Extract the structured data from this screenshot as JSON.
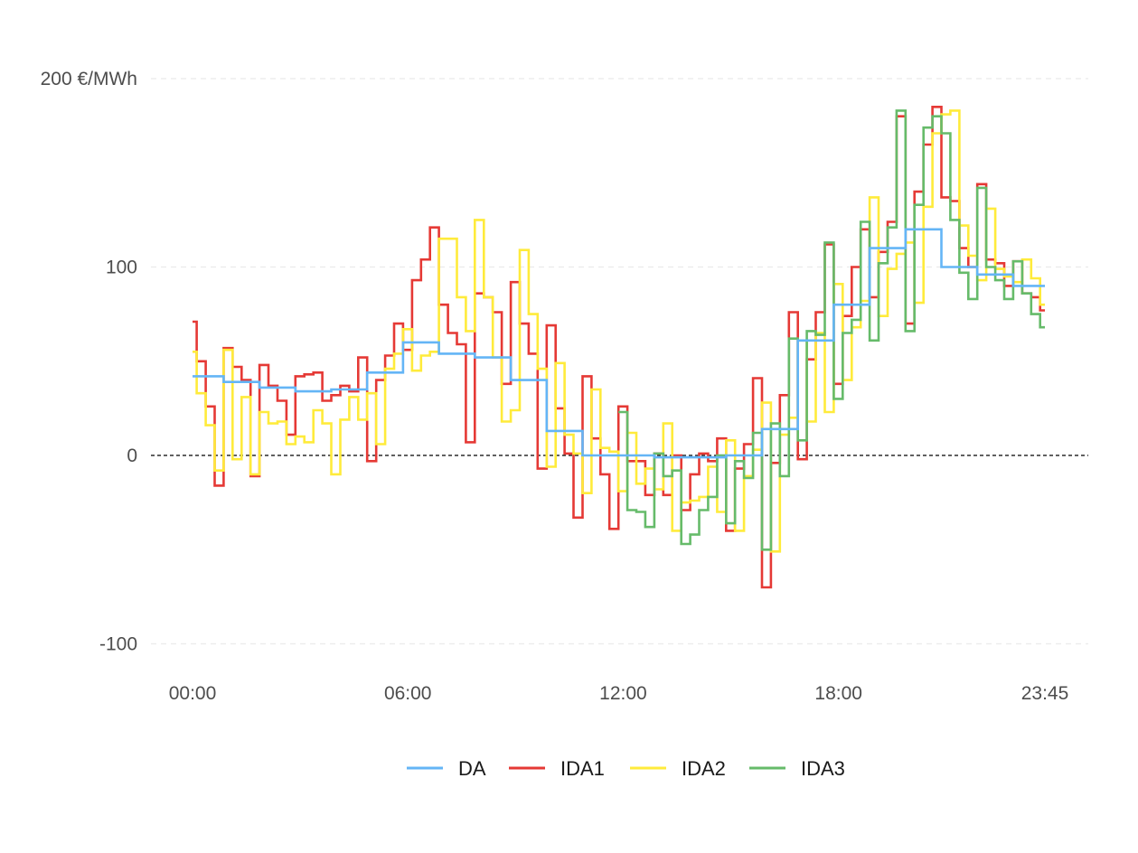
{
  "chart_data": {
    "type": "line",
    "step": "post",
    "x_unit": "quarter-hour interval of the day",
    "ylim": [
      -115,
      225
    ],
    "y_ticks": [
      {
        "value": 200,
        "label": "200 €/MWh"
      },
      {
        "value": 100,
        "label": "100"
      },
      {
        "value": 0,
        "label": "0"
      },
      {
        "value": -100,
        "label": "-100"
      }
    ],
    "x_range": [
      "00:00",
      "23:45"
    ],
    "x_ticks": [
      {
        "time": "00:00",
        "label": "00:00"
      },
      {
        "time": "06:00",
        "label": "06:00"
      },
      {
        "time": "12:00",
        "label": "12:00"
      },
      {
        "time": "18:00",
        "label": "18:00"
      },
      {
        "time": "23:45",
        "label": "23:45"
      }
    ],
    "reference_line": {
      "y": 0,
      "style": "dashed",
      "color": "#000000"
    },
    "grid": "horizontal-dashed",
    "legend_position": "bottom",
    "series": [
      {
        "name": "DA",
        "color": "#64b5f6",
        "points": [
          [
            "00:00",
            42
          ],
          [
            "00:52",
            39
          ],
          [
            "01:52",
            36
          ],
          [
            "02:52",
            34
          ],
          [
            "03:52",
            35
          ],
          [
            "04:52",
            44
          ],
          [
            "05:52",
            60
          ],
          [
            "06:52",
            54
          ],
          [
            "07:52",
            52
          ],
          [
            "08:52",
            40
          ],
          [
            "09:52",
            13
          ],
          [
            "10:52",
            0
          ],
          [
            "11:52",
            0
          ],
          [
            "12:52",
            -1
          ],
          [
            "13:52",
            -1
          ],
          [
            "14:52",
            0
          ],
          [
            "15:52",
            14
          ],
          [
            "16:52",
            61
          ],
          [
            "17:52",
            80
          ],
          [
            "18:52",
            110
          ],
          [
            "19:52",
            120
          ],
          [
            "20:52",
            100
          ],
          [
            "21:52",
            96
          ],
          [
            "22:52",
            90
          ],
          [
            "23:45",
            90
          ]
        ]
      },
      {
        "name": "IDA1",
        "color": "#e53935",
        "points": [
          [
            "00:00",
            71
          ],
          [
            "00:07",
            50
          ],
          [
            "00:22",
            26
          ],
          [
            "00:37",
            -16
          ],
          [
            "00:52",
            57
          ],
          [
            "01:07",
            47
          ],
          [
            "01:22",
            40
          ],
          [
            "01:37",
            -11
          ],
          [
            "01:52",
            48
          ],
          [
            "02:07",
            37
          ],
          [
            "02:22",
            29
          ],
          [
            "02:37",
            11
          ],
          [
            "02:52",
            42
          ],
          [
            "03:07",
            43
          ],
          [
            "03:22",
            44
          ],
          [
            "03:37",
            29
          ],
          [
            "03:52",
            32
          ],
          [
            "04:07",
            37
          ],
          [
            "04:22",
            34
          ],
          [
            "04:37",
            52
          ],
          [
            "04:52",
            -3
          ],
          [
            "05:07",
            40
          ],
          [
            "05:22",
            53
          ],
          [
            "05:37",
            70
          ],
          [
            "05:52",
            56
          ],
          [
            "06:07",
            93
          ],
          [
            "06:22",
            104
          ],
          [
            "06:37",
            121
          ],
          [
            "06:52",
            80
          ],
          [
            "07:07",
            65
          ],
          [
            "07:22",
            59
          ],
          [
            "07:37",
            7
          ],
          [
            "07:52",
            86
          ],
          [
            "08:07",
            84
          ],
          [
            "08:22",
            76
          ],
          [
            "08:37",
            38
          ],
          [
            "08:52",
            92
          ],
          [
            "09:07",
            70
          ],
          [
            "09:22",
            54
          ],
          [
            "09:37",
            -7
          ],
          [
            "09:52",
            69
          ],
          [
            "10:07",
            25
          ],
          [
            "10:22",
            1
          ],
          [
            "10:37",
            -33
          ],
          [
            "10:52",
            42
          ],
          [
            "11:07",
            9
          ],
          [
            "11:22",
            -10
          ],
          [
            "11:37",
            -39
          ],
          [
            "11:52",
            26
          ],
          [
            "12:07",
            -3
          ],
          [
            "12:22",
            -3
          ],
          [
            "12:37",
            -21
          ],
          [
            "12:52",
            1
          ],
          [
            "13:07",
            -21
          ],
          [
            "13:22",
            0
          ],
          [
            "13:37",
            -29
          ],
          [
            "13:52",
            -10
          ],
          [
            "14:07",
            1
          ],
          [
            "14:22",
            -3
          ],
          [
            "14:37",
            9
          ],
          [
            "14:52",
            -40
          ],
          [
            "15:07",
            -7
          ],
          [
            "15:22",
            6
          ],
          [
            "15:37",
            41
          ],
          [
            "15:52",
            -70
          ],
          [
            "16:07",
            -4
          ],
          [
            "16:22",
            32
          ],
          [
            "16:37",
            76
          ],
          [
            "16:52",
            -2
          ],
          [
            "17:07",
            51
          ],
          [
            "17:22",
            76
          ],
          [
            "17:37",
            112
          ],
          [
            "17:52",
            38
          ],
          [
            "18:07",
            74
          ],
          [
            "18:22",
            100
          ],
          [
            "18:37",
            120
          ],
          [
            "18:52",
            84
          ],
          [
            "19:07",
            108
          ],
          [
            "19:22",
            124
          ],
          [
            "19:37",
            180
          ],
          [
            "19:52",
            70
          ],
          [
            "20:07",
            140
          ],
          [
            "20:22",
            165
          ],
          [
            "20:37",
            185
          ],
          [
            "20:52",
            137
          ],
          [
            "21:07",
            135
          ],
          [
            "21:22",
            110
          ],
          [
            "21:37",
            100
          ],
          [
            "21:52",
            144
          ],
          [
            "22:07",
            104
          ],
          [
            "22:22",
            102
          ],
          [
            "22:37",
            90
          ],
          [
            "22:52",
            103
          ],
          [
            "23:07",
            86
          ],
          [
            "23:22",
            84
          ],
          [
            "23:37",
            77
          ],
          [
            "23:45",
            77
          ]
        ]
      },
      {
        "name": "IDA2",
        "color": "#ffeb3b",
        "points": [
          [
            "00:00",
            55
          ],
          [
            "00:07",
            33
          ],
          [
            "00:22",
            16
          ],
          [
            "00:37",
            -8
          ],
          [
            "00:52",
            56
          ],
          [
            "01:07",
            -2
          ],
          [
            "01:22",
            31
          ],
          [
            "01:37",
            -10
          ],
          [
            "01:52",
            23
          ],
          [
            "02:07",
            17
          ],
          [
            "02:22",
            18
          ],
          [
            "02:37",
            6
          ],
          [
            "02:52",
            10
          ],
          [
            "03:07",
            7
          ],
          [
            "03:22",
            24
          ],
          [
            "03:37",
            17
          ],
          [
            "03:52",
            -10
          ],
          [
            "04:07",
            19
          ],
          [
            "04:22",
            31
          ],
          [
            "04:37",
            19
          ],
          [
            "04:52",
            33
          ],
          [
            "05:07",
            6
          ],
          [
            "05:22",
            46
          ],
          [
            "05:37",
            54
          ],
          [
            "05:52",
            67
          ],
          [
            "06:07",
            45
          ],
          [
            "06:22",
            53
          ],
          [
            "06:37",
            55
          ],
          [
            "06:52",
            115
          ],
          [
            "07:07",
            115
          ],
          [
            "07:22",
            84
          ],
          [
            "07:37",
            66
          ],
          [
            "07:52",
            125
          ],
          [
            "08:07",
            84
          ],
          [
            "08:22",
            52
          ],
          [
            "08:37",
            18
          ],
          [
            "08:52",
            24
          ],
          [
            "09:07",
            109
          ],
          [
            "09:22",
            75
          ],
          [
            "09:37",
            46
          ],
          [
            "09:52",
            -6
          ],
          [
            "10:07",
            49
          ],
          [
            "10:22",
            11
          ],
          [
            "10:37",
            1
          ],
          [
            "10:52",
            -20
          ],
          [
            "11:07",
            35
          ],
          [
            "11:22",
            4
          ],
          [
            "11:37",
            2
          ],
          [
            "11:52",
            -19
          ],
          [
            "12:07",
            12
          ],
          [
            "12:22",
            -15
          ],
          [
            "12:37",
            -7
          ],
          [
            "12:52",
            -18
          ],
          [
            "13:07",
            17
          ],
          [
            "13:22",
            -40
          ],
          [
            "13:37",
            -25
          ],
          [
            "13:52",
            -24
          ],
          [
            "14:07",
            -22
          ],
          [
            "14:22",
            -6
          ],
          [
            "14:37",
            -30
          ],
          [
            "14:52",
            8
          ],
          [
            "15:07",
            -40
          ],
          [
            "15:22",
            -11
          ],
          [
            "15:37",
            3
          ],
          [
            "15:52",
            28
          ],
          [
            "16:07",
            -51
          ],
          [
            "16:22",
            11
          ],
          [
            "16:37",
            20
          ],
          [
            "16:52",
            61
          ],
          [
            "17:07",
            18
          ],
          [
            "17:22",
            65
          ],
          [
            "17:37",
            23
          ],
          [
            "17:52",
            91
          ],
          [
            "18:07",
            40
          ],
          [
            "18:22",
            68
          ],
          [
            "18:37",
            82
          ],
          [
            "18:52",
            137
          ],
          [
            "19:07",
            74
          ],
          [
            "19:22",
            99
          ],
          [
            "19:37",
            107
          ],
          [
            "19:52",
            113
          ],
          [
            "20:07",
            81
          ],
          [
            "20:22",
            132
          ],
          [
            "20:37",
            171
          ],
          [
            "20:52",
            181
          ],
          [
            "21:07",
            183
          ],
          [
            "21:22",
            122
          ],
          [
            "21:37",
            106
          ],
          [
            "21:52",
            93
          ],
          [
            "22:07",
            131
          ],
          [
            "22:22",
            99
          ],
          [
            "22:37",
            95
          ],
          [
            "22:52",
            92
          ],
          [
            "23:07",
            104
          ],
          [
            "23:22",
            94
          ],
          [
            "23:37",
            80
          ],
          [
            "23:45",
            80
          ]
        ]
      },
      {
        "name": "IDA3",
        "color": "#66bb6a",
        "points": [
          [
            "11:52",
            23
          ],
          [
            "12:07",
            -29
          ],
          [
            "12:22",
            -30
          ],
          [
            "12:37",
            -38
          ],
          [
            "12:52",
            1
          ],
          [
            "13:07",
            -11
          ],
          [
            "13:22",
            -8
          ],
          [
            "13:37",
            -47
          ],
          [
            "13:52",
            -42
          ],
          [
            "14:07",
            -29
          ],
          [
            "14:22",
            -22
          ],
          [
            "14:37",
            0
          ],
          [
            "14:52",
            -36
          ],
          [
            "15:07",
            -3
          ],
          [
            "15:22",
            -12
          ],
          [
            "15:37",
            12
          ],
          [
            "15:52",
            -50
          ],
          [
            "16:07",
            17
          ],
          [
            "16:22",
            -11
          ],
          [
            "16:37",
            62
          ],
          [
            "16:52",
            8
          ],
          [
            "17:07",
            66
          ],
          [
            "17:22",
            64
          ],
          [
            "17:37",
            113
          ],
          [
            "17:52",
            30
          ],
          [
            "18:07",
            65
          ],
          [
            "18:22",
            72
          ],
          [
            "18:37",
            124
          ],
          [
            "18:52",
            61
          ],
          [
            "19:07",
            102
          ],
          [
            "19:22",
            121
          ],
          [
            "19:37",
            183
          ],
          [
            "19:52",
            66
          ],
          [
            "20:07",
            133
          ],
          [
            "20:22",
            174
          ],
          [
            "20:37",
            180
          ],
          [
            "20:52",
            171
          ],
          [
            "21:07",
            125
          ],
          [
            "21:22",
            97
          ],
          [
            "21:37",
            83
          ],
          [
            "21:52",
            142
          ],
          [
            "22:07",
            100
          ],
          [
            "22:22",
            93
          ],
          [
            "22:37",
            83
          ],
          [
            "22:52",
            103
          ],
          [
            "23:07",
            86
          ],
          [
            "23:22",
            75
          ],
          [
            "23:37",
            68
          ],
          [
            "23:45",
            68
          ]
        ]
      }
    ]
  }
}
